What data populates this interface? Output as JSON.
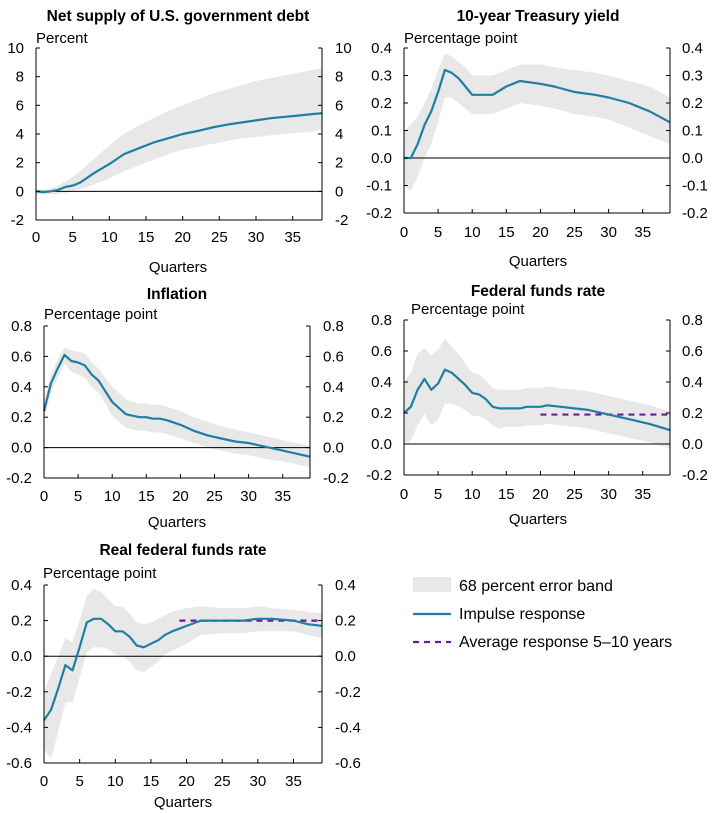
{
  "colors": {
    "band": "#e8e8e8",
    "line": "#1f7ea1",
    "avg": "#6a1b9a",
    "axis": "#000000"
  },
  "legend": {
    "band_label": "68 percent error band",
    "line_label": "Impulse response",
    "avg_label": "Average response 5–10 years"
  },
  "chart_data": [
    {
      "id": "netsupply",
      "type": "line",
      "title": "Net supply of U.S. government debt",
      "ylabel": "Percent",
      "xlabel": "Quarters",
      "ylim": [
        -2,
        10
      ],
      "yticks": [
        -2,
        0,
        2,
        4,
        6,
        8,
        10
      ],
      "xlim": [
        0,
        39
      ],
      "xticks": [
        0,
        5,
        10,
        15,
        20,
        25,
        30,
        35
      ],
      "x": [
        0,
        1,
        2,
        3,
        4,
        5,
        6,
        8,
        10,
        12,
        14,
        16,
        18,
        20,
        22,
        24,
        26,
        28,
        30,
        32,
        34,
        36,
        38,
        39
      ],
      "values": [
        0,
        -0.05,
        0,
        0.1,
        0.3,
        0.4,
        0.6,
        1.3,
        1.9,
        2.6,
        3.0,
        3.4,
        3.7,
        4.0,
        4.2,
        4.45,
        4.65,
        4.8,
        4.95,
        5.1,
        5.2,
        5.3,
        5.4,
        5.45
      ],
      "band_upper": [
        0.2,
        0.1,
        0.2,
        0.4,
        0.7,
        1.0,
        1.4,
        2.3,
        3.2,
        4.0,
        4.6,
        5.1,
        5.6,
        6.0,
        6.4,
        6.8,
        7.1,
        7.4,
        7.7,
        7.9,
        8.1,
        8.3,
        8.5,
        8.6
      ],
      "band_lower": [
        -0.2,
        -0.2,
        -0.2,
        -0.2,
        -0.1,
        0.0,
        0.1,
        0.5,
        0.9,
        1.4,
        1.8,
        2.2,
        2.6,
        2.9,
        3.1,
        3.3,
        3.5,
        3.7,
        3.8,
        3.9,
        4.0,
        4.1,
        4.2,
        4.3
      ]
    },
    {
      "id": "tsy10",
      "type": "line",
      "title": "10-year Treasury yield",
      "ylabel": "Percentage point",
      "xlabel": "Quarters",
      "ylim": [
        -0.2,
        0.4
      ],
      "yticks": [
        -0.2,
        -0.1,
        0.0,
        0.1,
        0.2,
        0.3,
        0.4
      ],
      "xlim": [
        0,
        39
      ],
      "xticks": [
        0,
        5,
        10,
        15,
        20,
        25,
        30,
        35
      ],
      "x": [
        0,
        1,
        2,
        3,
        4,
        5,
        6,
        7,
        8,
        9,
        10,
        11,
        12,
        13,
        15,
        17,
        20,
        22,
        25,
        28,
        30,
        33,
        36,
        39
      ],
      "values": [
        0,
        0,
        0.05,
        0.12,
        0.17,
        0.24,
        0.32,
        0.31,
        0.29,
        0.26,
        0.23,
        0.23,
        0.23,
        0.23,
        0.26,
        0.28,
        0.27,
        0.26,
        0.24,
        0.23,
        0.22,
        0.2,
        0.17,
        0.13
      ],
      "band_upper": [
        0.1,
        0.12,
        0.15,
        0.2,
        0.25,
        0.32,
        0.38,
        0.37,
        0.35,
        0.33,
        0.3,
        0.3,
        0.3,
        0.3,
        0.32,
        0.34,
        0.34,
        0.33,
        0.32,
        0.31,
        0.3,
        0.28,
        0.26,
        0.22
      ],
      "band_lower": [
        -0.1,
        -0.12,
        -0.07,
        0.0,
        0.05,
        0.13,
        0.22,
        0.22,
        0.2,
        0.18,
        0.16,
        0.16,
        0.16,
        0.16,
        0.18,
        0.2,
        0.19,
        0.18,
        0.16,
        0.15,
        0.14,
        0.11,
        0.08,
        0.05
      ]
    },
    {
      "id": "inflation",
      "type": "line",
      "title": "Inflation",
      "ylabel": "Percentage point",
      "xlabel": "Quarters",
      "ylim": [
        -0.2,
        0.8
      ],
      "yticks": [
        -0.2,
        0.0,
        0.2,
        0.4,
        0.6,
        0.8
      ],
      "xlim": [
        0,
        39
      ],
      "xticks": [
        0,
        5,
        10,
        15,
        20,
        25,
        30,
        35
      ],
      "x": [
        0,
        1,
        2,
        3,
        4,
        5,
        6,
        7,
        8,
        9,
        10,
        11,
        12,
        13,
        14,
        15,
        16,
        17,
        18,
        20,
        22,
        24,
        26,
        28,
        30,
        31,
        33,
        35,
        37,
        39
      ],
      "values": [
        0.24,
        0.42,
        0.52,
        0.61,
        0.57,
        0.56,
        0.54,
        0.48,
        0.44,
        0.37,
        0.3,
        0.26,
        0.22,
        0.21,
        0.2,
        0.2,
        0.19,
        0.19,
        0.18,
        0.15,
        0.11,
        0.08,
        0.06,
        0.04,
        0.03,
        0.02,
        0.0,
        -0.02,
        -0.04,
        -0.06
      ],
      "band_upper": [
        0.3,
        0.48,
        0.58,
        0.66,
        0.64,
        0.63,
        0.62,
        0.56,
        0.52,
        0.46,
        0.4,
        0.36,
        0.32,
        0.3,
        0.29,
        0.29,
        0.28,
        0.28,
        0.27,
        0.24,
        0.2,
        0.17,
        0.14,
        0.12,
        0.1,
        0.09,
        0.07,
        0.05,
        0.03,
        0.01
      ],
      "band_lower": [
        0.18,
        0.36,
        0.46,
        0.55,
        0.5,
        0.48,
        0.46,
        0.4,
        0.36,
        0.29,
        0.21,
        0.17,
        0.13,
        0.12,
        0.11,
        0.11,
        0.1,
        0.1,
        0.09,
        0.06,
        0.03,
        0.0,
        -0.02,
        -0.04,
        -0.05,
        -0.06,
        -0.08,
        -0.09,
        -0.11,
        -0.13
      ]
    },
    {
      "id": "fedfunds",
      "type": "line",
      "title": "Federal funds rate",
      "ylabel": "Percentage point",
      "xlabel": "Quarters",
      "ylim": [
        -0.2,
        0.8
      ],
      "yticks": [
        -0.2,
        0.0,
        0.2,
        0.4,
        0.6,
        0.8
      ],
      "xlim": [
        0,
        39
      ],
      "xticks": [
        0,
        5,
        10,
        15,
        20,
        25,
        30,
        35
      ],
      "x": [
        0,
        1,
        2,
        3,
        4,
        5,
        6,
        7,
        8,
        9,
        10,
        11,
        12,
        13,
        14,
        15,
        17,
        18,
        20,
        21,
        23,
        25,
        27,
        30,
        33,
        36,
        39
      ],
      "values": [
        0.2,
        0.24,
        0.35,
        0.42,
        0.35,
        0.39,
        0.48,
        0.46,
        0.42,
        0.38,
        0.33,
        0.32,
        0.29,
        0.24,
        0.23,
        0.23,
        0.23,
        0.24,
        0.24,
        0.25,
        0.24,
        0.23,
        0.22,
        0.19,
        0.16,
        0.13,
        0.09
      ],
      "band_upper": [
        0.4,
        0.46,
        0.58,
        0.62,
        0.57,
        0.61,
        0.68,
        0.63,
        0.58,
        0.52,
        0.46,
        0.45,
        0.41,
        0.36,
        0.35,
        0.35,
        0.35,
        0.36,
        0.36,
        0.37,
        0.36,
        0.35,
        0.34,
        0.31,
        0.28,
        0.25,
        0.21
      ],
      "band_lower": [
        0.0,
        0.02,
        0.12,
        0.2,
        0.12,
        0.16,
        0.26,
        0.26,
        0.24,
        0.22,
        0.18,
        0.18,
        0.16,
        0.12,
        0.1,
        0.11,
        0.11,
        0.12,
        0.12,
        0.13,
        0.12,
        0.11,
        0.1,
        0.07,
        0.04,
        0.01,
        -0.03
      ],
      "avg_value": 0.19,
      "avg_x": [
        20,
        39
      ]
    },
    {
      "id": "realff",
      "type": "line",
      "title": "Real federal funds rate",
      "ylabel": "Percentage point",
      "xlabel": "Quarters",
      "ylim": [
        -0.6,
        0.4
      ],
      "yticks": [
        -0.6,
        -0.4,
        -0.2,
        0.0,
        0.2,
        0.4
      ],
      "xlim": [
        0,
        39
      ],
      "xticks": [
        0,
        5,
        10,
        15,
        20,
        25,
        30,
        35
      ],
      "x": [
        0,
        1,
        2,
        3,
        4,
        5,
        6,
        7,
        8,
        9,
        10,
        11,
        12,
        13,
        14,
        15,
        16,
        17,
        18,
        20,
        22,
        25,
        28,
        30,
        32,
        35,
        37,
        39
      ],
      "values": [
        -0.36,
        -0.3,
        -0.18,
        -0.05,
        -0.08,
        0.05,
        0.19,
        0.21,
        0.21,
        0.18,
        0.14,
        0.14,
        0.11,
        0.06,
        0.05,
        0.07,
        0.09,
        0.12,
        0.14,
        0.17,
        0.2,
        0.2,
        0.2,
        0.21,
        0.21,
        0.2,
        0.18,
        0.17
      ],
      "band_upper": [
        -0.2,
        -0.1,
        0.0,
        0.1,
        0.08,
        0.2,
        0.34,
        0.38,
        0.36,
        0.32,
        0.28,
        0.28,
        0.24,
        0.19,
        0.18,
        0.19,
        0.21,
        0.23,
        0.25,
        0.27,
        0.28,
        0.27,
        0.27,
        0.28,
        0.27,
        0.26,
        0.25,
        0.24
      ],
      "band_lower": [
        -0.52,
        -0.58,
        -0.42,
        -0.26,
        -0.26,
        -0.12,
        0.02,
        0.05,
        0.05,
        0.04,
        0.01,
        0.0,
        -0.03,
        -0.08,
        -0.09,
        -0.06,
        -0.03,
        0.01,
        0.03,
        0.07,
        0.12,
        0.13,
        0.13,
        0.14,
        0.14,
        0.14,
        0.12,
        0.1
      ],
      "avg_value": 0.2,
      "avg_x": [
        19,
        39
      ]
    }
  ]
}
